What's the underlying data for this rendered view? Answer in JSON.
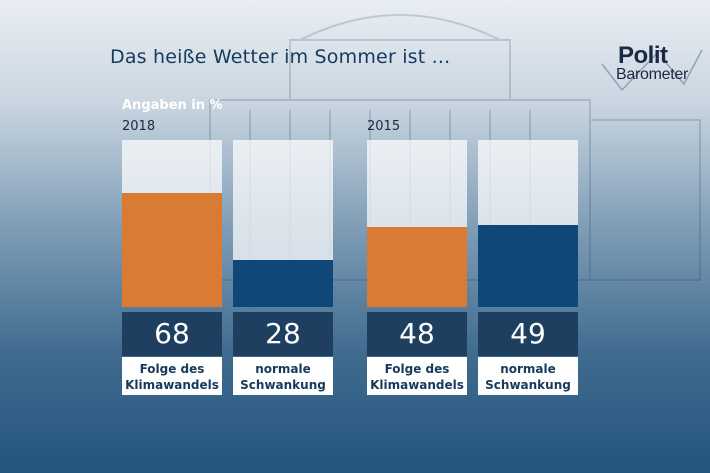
{
  "title": "Das heiße Wetter im Sommer ist ...",
  "logo": {
    "top": "Polit",
    "bottom": "Barometer"
  },
  "colors": {
    "orange": "#d97b33",
    "blue": "#0f4778",
    "label_bg": "#1f3f60"
  },
  "chart_data": [
    {
      "type": "bar",
      "group": "2018",
      "unit_label": "Angaben in %",
      "categories": [
        "Folge des\nKlimawandels",
        "normale\nSchwankung"
      ],
      "values": [
        68,
        28
      ],
      "ylim": [
        0,
        100
      ]
    },
    {
      "type": "bar",
      "group": "2015",
      "categories": [
        "Folge des\nKlimawandels",
        "normale\nSchwankung"
      ],
      "values": [
        48,
        49
      ],
      "ylim": [
        0,
        100
      ]
    }
  ]
}
